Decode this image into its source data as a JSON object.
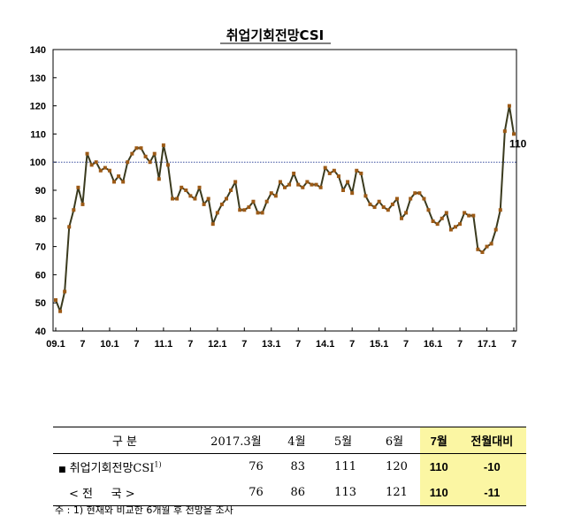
{
  "chart_data": {
    "type": "line",
    "title": "취업기회전망CSI",
    "xlabel": "",
    "ylabel": "",
    "ylim": [
      40,
      140
    ],
    "y_ticks": [
      40,
      50,
      60,
      70,
      80,
      90,
      100,
      110,
      120,
      130,
      140
    ],
    "x_tick_labels": [
      "09.1",
      "7",
      "10.1",
      "7",
      "11.1",
      "7",
      "12.1",
      "7",
      "13.1",
      "7",
      "14.1",
      "7",
      "15.1",
      "7",
      "16.1",
      "7",
      "17.1",
      "7"
    ],
    "reference_line": 100,
    "end_label": "110",
    "line_color": "#3a3a1e",
    "marker_color": "#9c5a16",
    "reference_color": "#3a4fa0",
    "grid": false,
    "series": [
      {
        "x_start": "2009-01",
        "frequency": "monthly",
        "values": [
          51,
          47,
          54,
          77,
          83,
          91,
          85,
          103,
          99,
          100,
          97,
          98,
          97,
          93,
          95,
          93,
          100,
          103,
          105,
          105,
          102,
          100,
          103,
          94,
          106,
          99,
          87,
          87,
          91,
          90,
          88,
          87,
          91,
          85,
          87,
          78,
          82,
          85,
          87,
          90,
          93,
          83,
          83,
          84,
          86,
          82,
          82,
          86,
          89,
          88,
          93,
          91,
          92,
          96,
          92,
          91,
          93,
          92,
          92,
          91,
          98,
          96,
          97,
          95,
          90,
          93,
          89,
          97,
          96,
          88,
          85,
          84,
          86,
          84,
          83,
          85,
          87,
          80,
          82,
          87,
          89,
          89,
          87,
          83,
          79,
          78,
          80,
          82,
          76,
          77,
          78,
          82,
          81,
          81,
          69,
          68,
          70,
          71,
          76,
          83,
          111,
          120,
          110
        ]
      }
    ]
  },
  "table": {
    "headers": [
      "구  분",
      "2017.3월",
      "4월",
      "5월",
      "6월",
      "7월",
      "전월대비"
    ],
    "rows": [
      {
        "label": "취업기회전망CSI",
        "sup": "1)",
        "marker": "■",
        "values": [
          "76",
          "83",
          "111",
          "120",
          "110",
          "-10"
        ]
      },
      {
        "label": "< 전     국 >",
        "sup": "",
        "marker": "",
        "values": [
          "76",
          "86",
          "113",
          "121",
          "110",
          "-11"
        ]
      }
    ],
    "highlight_color": "#fbf6a3"
  },
  "footnote": "주 : 1) 현재와 비교한 6개월 후 전망을 조사"
}
